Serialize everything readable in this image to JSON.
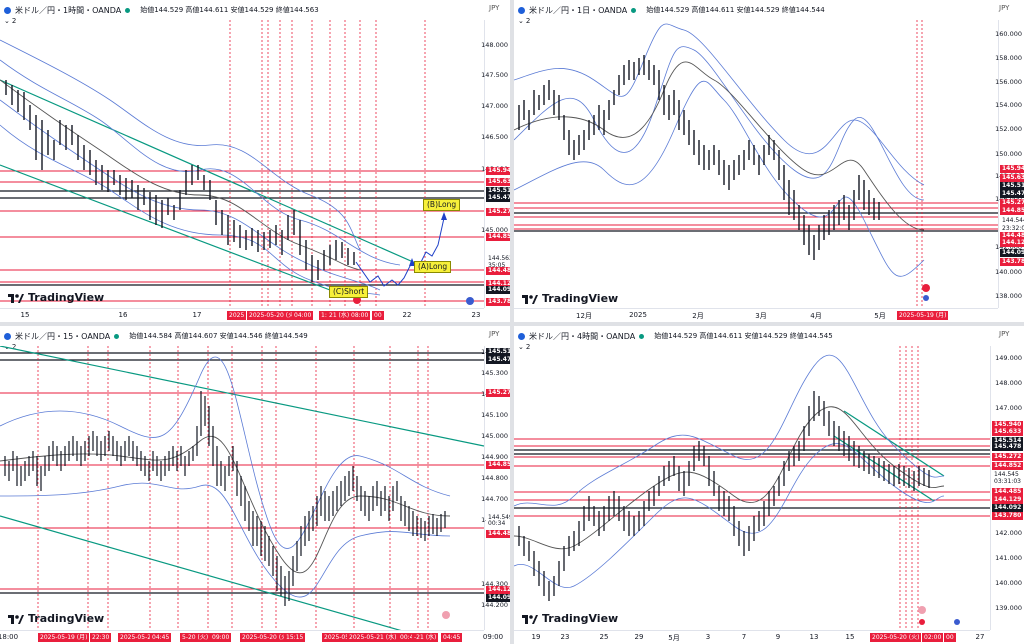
{
  "panels": {
    "p1": {
      "title": "米ドル／円・1時間・OANDA",
      "ohlc": "始値144.529 高値144.611 安値144.529 終値144.563",
      "indicator_count": "2",
      "currency": "JPY",
      "y_ticks": [
        "148.000",
        "147.500",
        "147.000",
        "146.500",
        "146.000",
        "145.000"
      ],
      "price_labels": [
        {
          "text": "145.940",
          "color": "#e91e3c"
        },
        {
          "text": "145.633",
          "color": "#e91e3c"
        },
        {
          "text": "145.514",
          "color": "#131722"
        },
        {
          "text": "145.478",
          "color": "#131722"
        },
        {
          "text": "145.272",
          "color": "#e91e3c"
        },
        {
          "text": "144.852",
          "color": "#e91e3c"
        },
        {
          "text": "144.563",
          "color": "#ffffff"
        },
        {
          "text": "35:05",
          "color": "#ffffff"
        },
        {
          "text": "144.485",
          "color": "#e91e3c"
        },
        {
          "text": "144.129",
          "color": "#e91e3c"
        },
        {
          "text": "144.092",
          "color": "#131722"
        },
        {
          "text": "143.780",
          "color": "#e91e3c"
        }
      ],
      "x_ticks": [
        "15",
        "16",
        "17",
        "22",
        "23"
      ],
      "time_tags": [
        "2025",
        "2025-05-20 (火)",
        "04:00",
        "1:00",
        "21 (水)",
        "08:00",
        "00"
      ],
      "annotations": {
        "b_long": "(B)Long",
        "a_long": "(A)Long",
        "c_short": "(C)Short"
      },
      "logo": "TradingView"
    },
    "p2": {
      "title": "米ドル／円・1日・OANDA",
      "ohlc": "始値144.529 高値144.611 安値144.529 終値144.544",
      "indicator_count": "2",
      "currency": "JPY",
      "y_ticks": [
        "160.000",
        "158.000",
        "156.000",
        "154.000",
        "152.000",
        "150.000",
        "148.000",
        "146.000",
        "142.000",
        "140.000",
        "138.000"
      ],
      "price_labels": [
        {
          "text": "145.940",
          "color": "#e91e3c"
        },
        {
          "text": "145.633",
          "color": "#e91e3c"
        },
        {
          "text": "145.514",
          "color": "#131722"
        },
        {
          "text": "145.478",
          "color": "#131722"
        },
        {
          "text": "145.272",
          "color": "#e91e3c"
        },
        {
          "text": "144.852",
          "color": "#e91e3c"
        },
        {
          "text": "144.544",
          "color": "#ffffff"
        },
        {
          "text": "23:32:06",
          "color": "#ffffff"
        },
        {
          "text": "144.485",
          "color": "#e91e3c"
        },
        {
          "text": "144.129",
          "color": "#e91e3c"
        },
        {
          "text": "144.092",
          "color": "#131722"
        },
        {
          "text": "143.780",
          "color": "#e91e3c"
        }
      ],
      "x_ticks": [
        "12月",
        "2025",
        "2月",
        "3月",
        "4月",
        "5月",
        "3"
      ],
      "time_tags": [
        "2025-05-19 (月)"
      ],
      "logo": "TradingView"
    },
    "p3": {
      "title": "米ドル／円・15・OANDA",
      "ohlc": "始値144.584 高値144.607 安値144.546 終値144.549",
      "indicator_count": "2",
      "currency": "JPY",
      "y_ticks": [
        "145.400",
        "145.300",
        "145.200",
        "145.100",
        "145.000",
        "144.900",
        "144.800",
        "144.700",
        "144.600",
        "144.300",
        "144.200"
      ],
      "price_labels": [
        {
          "text": "145.514",
          "color": "#131722"
        },
        {
          "text": "145.478",
          "color": "#131722"
        },
        {
          "text": "145.272",
          "color": "#e91e3c"
        },
        {
          "text": "144.852",
          "color": "#e91e3c"
        },
        {
          "text": "144.549",
          "color": "#ffffff"
        },
        {
          "text": "00:34",
          "color": "#ffffff"
        },
        {
          "text": "144.485",
          "color": "#e91e3c"
        },
        {
          "text": "144.129",
          "color": "#e91e3c"
        },
        {
          "text": "144.092",
          "color": "#131722"
        }
      ],
      "x_ticks": [
        "18:00",
        "09:00"
      ],
      "time_tags": [
        "2025-05-19 (月)",
        "22:30",
        "2025-05-20 (火)",
        "04:45",
        "5-20 (火)",
        "09:00",
        "2025-05-20 (火)",
        "15:15",
        "2025-05",
        "2025-05-21 (水)",
        "00:45",
        "-21 (水)",
        "04:45"
      ],
      "logo": "TradingView"
    },
    "p4": {
      "title": "米ドル／円・4時間・OANDA",
      "ohlc": "始値144.529 高値144.611 安値144.529 終値144.545",
      "indicator_count": "2",
      "currency": "JPY",
      "y_ticks": [
        "149.000",
        "148.000",
        "147.000",
        "145.000",
        "144.000",
        "142.000",
        "141.000",
        "140.000",
        "139.000"
      ],
      "price_labels": [
        {
          "text": "145.940",
          "color": "#e91e3c"
        },
        {
          "text": "145.633",
          "color": "#e91e3c"
        },
        {
          "text": "145.514",
          "color": "#131722"
        },
        {
          "text": "145.478",
          "color": "#131722"
        },
        {
          "text": "145.272",
          "color": "#e91e3c"
        },
        {
          "text": "144.852",
          "color": "#e91e3c"
        },
        {
          "text": "144.545",
          "color": "#ffffff"
        },
        {
          "text": "03:31:03",
          "color": "#ffffff"
        },
        {
          "text": "144.485",
          "color": "#e91e3c"
        },
        {
          "text": "144.129",
          "color": "#e91e3c"
        },
        {
          "text": "144.092",
          "color": "#131722"
        },
        {
          "text": "143.780",
          "color": "#e91e3c"
        }
      ],
      "x_ticks": [
        "19",
        "23",
        "25",
        "29",
        "5月",
        "3",
        "7",
        "9",
        "13",
        "15",
        "27"
      ],
      "time_tags": [
        "2025-05-20 (火)",
        "02:00",
        "00"
      ],
      "logo": "TradingView"
    }
  },
  "colors": {
    "red": "#e91e3c",
    "green": "#089981",
    "band": "#5b7bd5",
    "ma": "#555555",
    "candle": "#131722"
  }
}
